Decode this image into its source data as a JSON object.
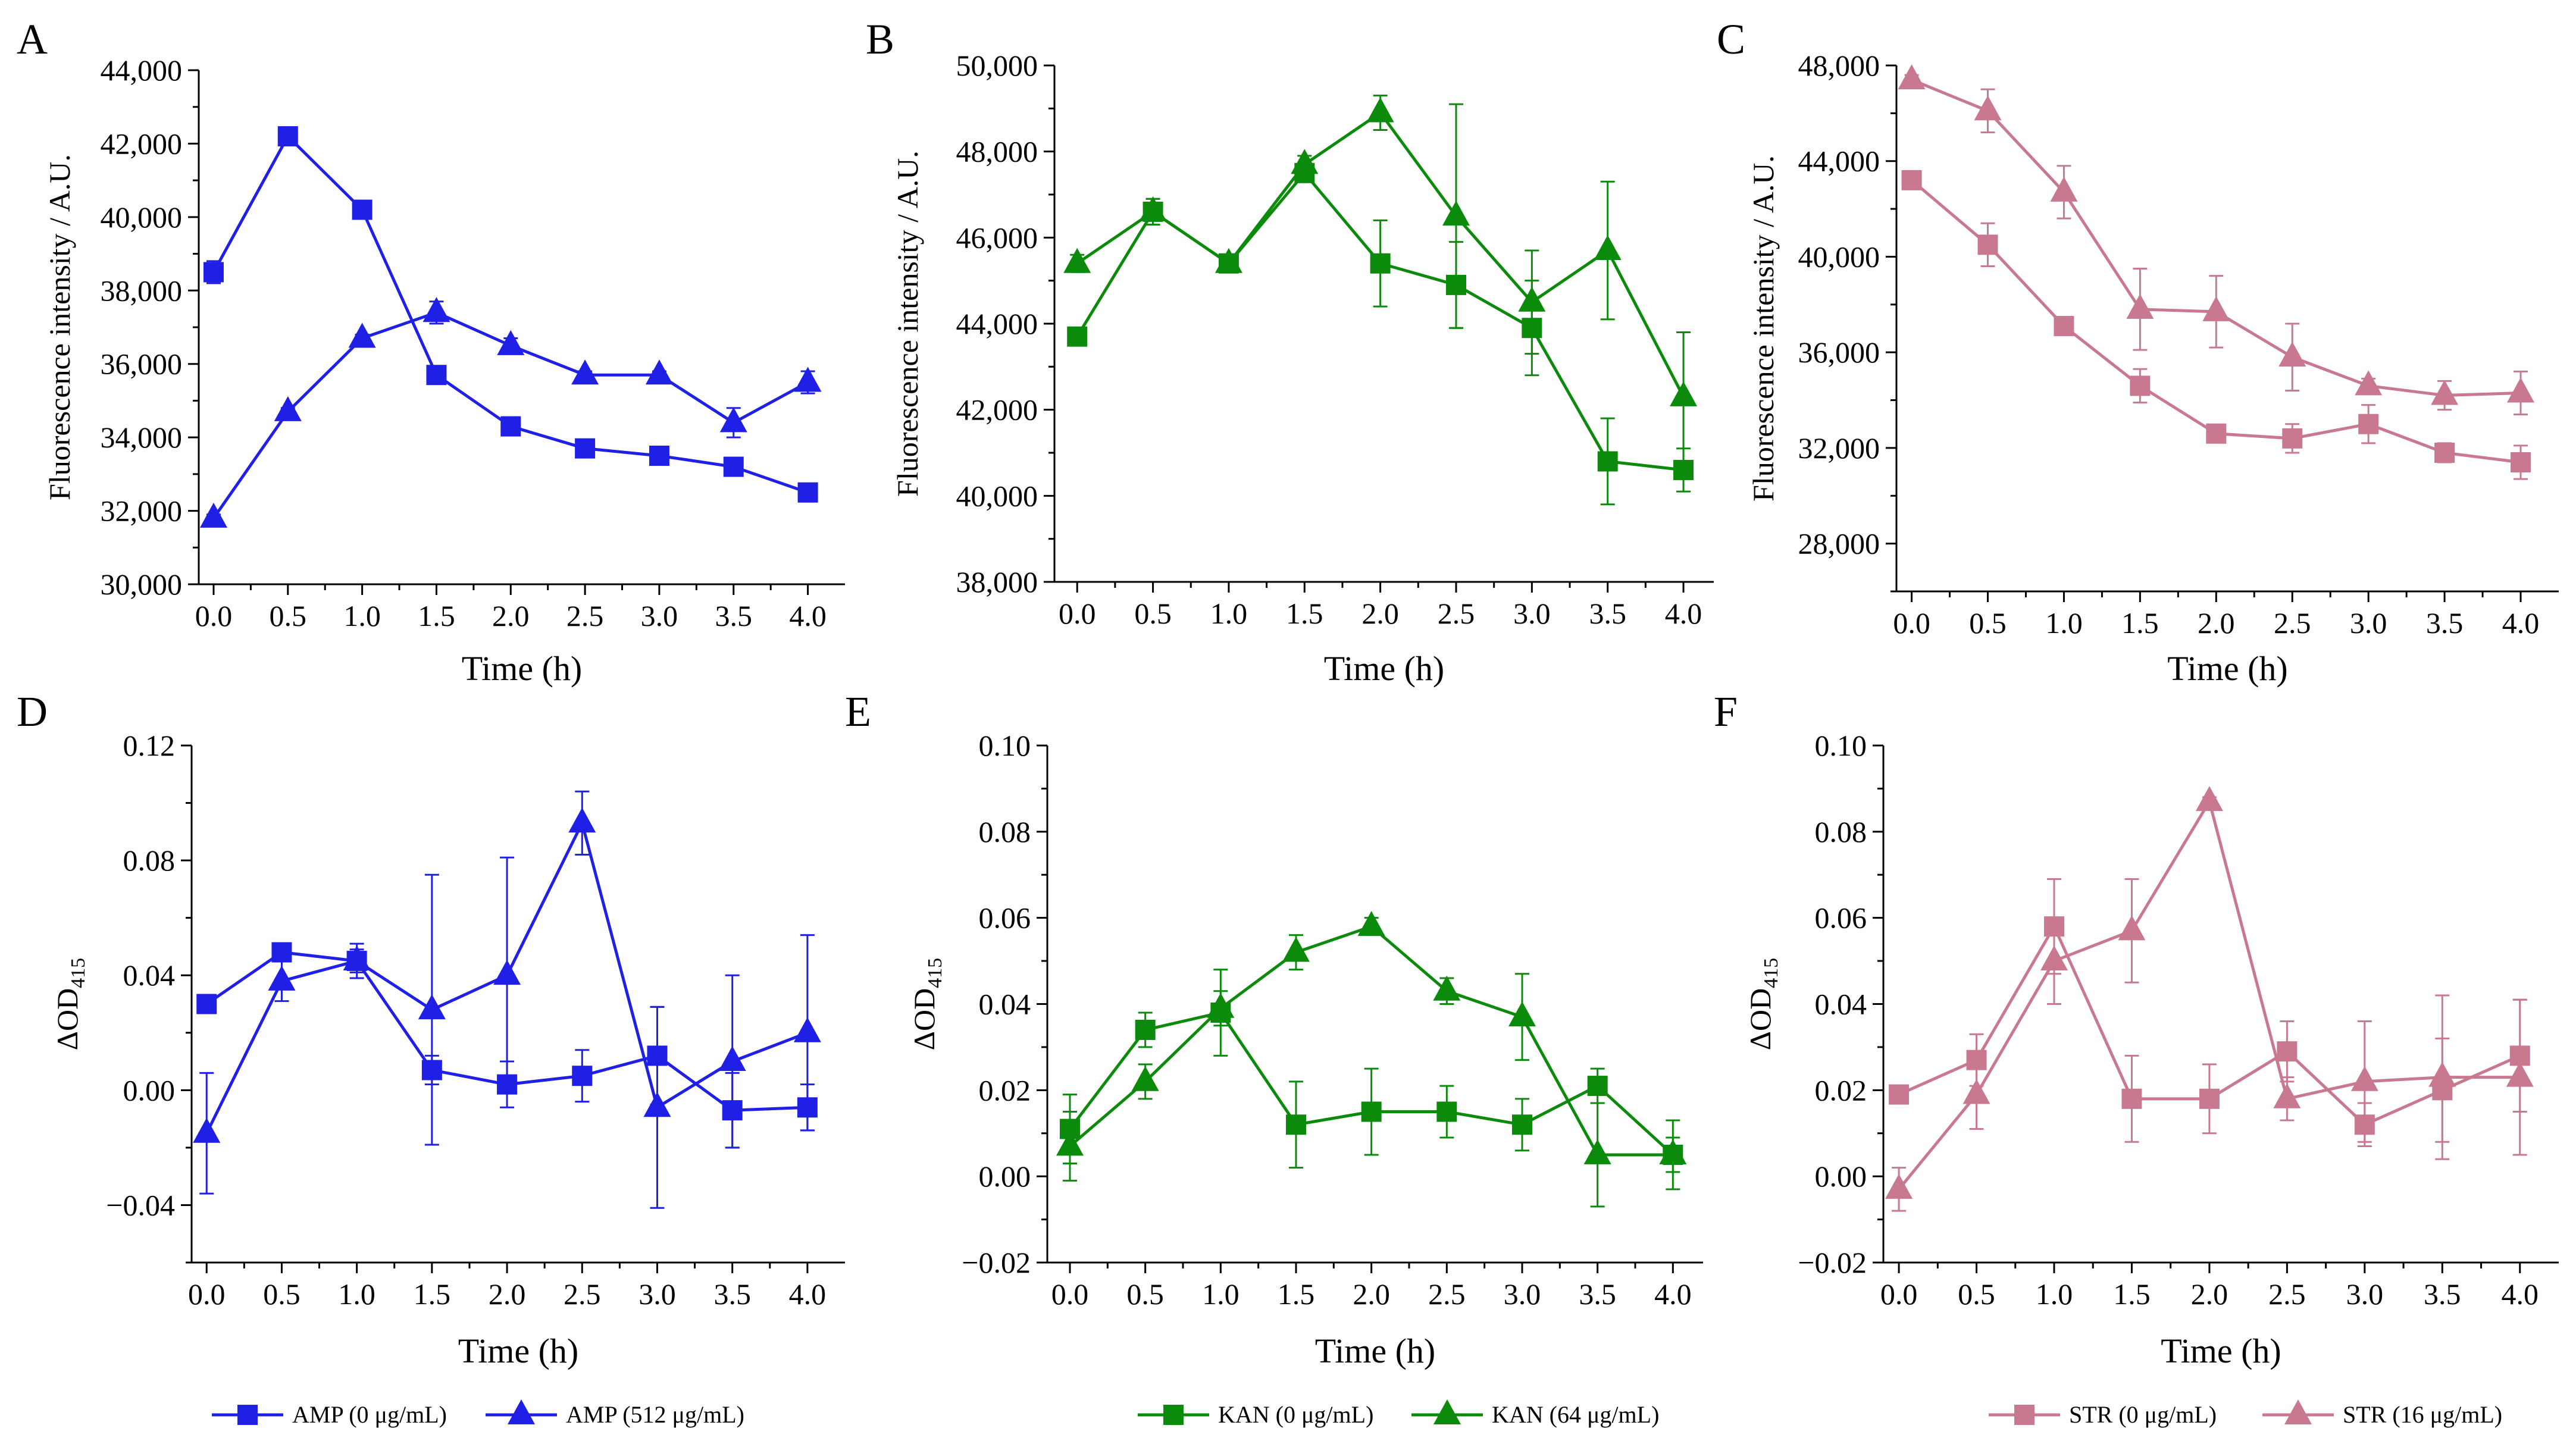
{
  "chart_data": [
    {
      "panel": "A",
      "type": "line",
      "x": [
        0.0,
        0.5,
        1.0,
        1.5,
        2.0,
        2.5,
        3.0,
        3.5,
        4.0
      ],
      "xlabel": "Time (h)",
      "ylabel": "Fluorescence intensity / A.U.",
      "xlim": [
        -0.1,
        4.25
      ],
      "ylim": [
        30000,
        44000
      ],
      "xticks": [
        0.0,
        0.5,
        1.0,
        1.5,
        2.0,
        2.5,
        3.0,
        3.5,
        4.0
      ],
      "xtick_labels": [
        "0.0",
        "0.5",
        "1.0",
        "1.5",
        "2.0",
        "2.5",
        "3.0",
        "3.5",
        "4.0"
      ],
      "yticks": [
        30000,
        32000,
        34000,
        36000,
        38000,
        40000,
        42000,
        44000
      ],
      "ytick_labels": [
        "30,000",
        "32,000",
        "34,000",
        "36,000",
        "38,000",
        "40,000",
        "42,000",
        "44,000"
      ],
      "color": "#1f1fe6",
      "series": [
        {
          "name": "AMP (0 μg/mL)",
          "marker": "square",
          "values": [
            38500,
            42200,
            40200,
            35700,
            34300,
            33700,
            33500,
            33200,
            32500
          ],
          "errors": [
            300,
            150,
            150,
            150,
            250,
            100,
            100,
            150,
            200
          ]
        },
        {
          "name": "AMP (512 μg/mL)",
          "marker": "triangle",
          "values": [
            31800,
            34700,
            36700,
            37400,
            36500,
            35700,
            35700,
            34400,
            35500
          ],
          "errors": [
            100,
            100,
            100,
            300,
            200,
            100,
            100,
            400,
            300
          ]
        }
      ]
    },
    {
      "panel": "B",
      "type": "line",
      "x": [
        0.0,
        0.5,
        1.0,
        1.5,
        2.0,
        2.5,
        3.0,
        3.5,
        4.0
      ],
      "xlabel": "Time (h)",
      "ylabel": "Fluorescence intensity / A.U.",
      "xlim": [
        -0.15,
        4.2
      ],
      "ylim": [
        38000,
        50000
      ],
      "xticks": [
        0.0,
        0.5,
        1.0,
        1.5,
        2.0,
        2.5,
        3.0,
        3.5,
        4.0
      ],
      "xtick_labels": [
        "0.0",
        "0.5",
        "1.0",
        "1.5",
        "2.0",
        "2.5",
        "3.0",
        "3.5",
        "4.0"
      ],
      "yticks": [
        38000,
        40000,
        42000,
        44000,
        46000,
        48000,
        50000
      ],
      "ytick_labels": [
        "38,000",
        "40,000",
        "42,000",
        "44,000",
        "46,000",
        "48,000",
        "50,000"
      ],
      "color": "#0b8a0b",
      "series": [
        {
          "name": "KAN (0 μg/mL)",
          "marker": "square",
          "values": [
            43700,
            46600,
            45400,
            47500,
            45400,
            44900,
            43900,
            40800,
            40600
          ],
          "errors": [
            100,
            300,
            200,
            200,
            1000,
            1000,
            1100,
            1000,
            500
          ]
        },
        {
          "name": "KAN (64 μg/mL)",
          "marker": "triangle",
          "values": [
            45400,
            46600,
            45400,
            47700,
            48900,
            46500,
            44500,
            45700,
            42300
          ],
          "errors": [
            200,
            300,
            200,
            200,
            400,
            2600,
            1200,
            1600,
            1500
          ]
        }
      ]
    },
    {
      "panel": "C",
      "type": "line",
      "x": [
        0.0,
        0.5,
        1.0,
        1.5,
        2.0,
        2.5,
        3.0,
        3.5,
        4.0
      ],
      "xlabel": "Time (h)",
      "ylabel": "Fluorescence intensity / A.U.",
      "xlim": [
        -0.1,
        4.25
      ],
      "ylim": [
        26000,
        48000
      ],
      "xticks": [
        0.0,
        0.5,
        1.0,
        1.5,
        2.0,
        2.5,
        3.0,
        3.5,
        4.0
      ],
      "xtick_labels": [
        "0.0",
        "0.5",
        "1.0",
        "1.5",
        "2.0",
        "2.5",
        "3.0",
        "3.5",
        "4.0"
      ],
      "yticks": [
        28000,
        32000,
        36000,
        40000,
        44000,
        48000
      ],
      "ytick_labels": [
        "28,000",
        "32,000",
        "36,000",
        "40,000",
        "44,000",
        "48,000"
      ],
      "color": "#c9798f",
      "series": [
        {
          "name": "STR (0 μg/mL)",
          "marker": "square",
          "values": [
            43200,
            40500,
            37100,
            34600,
            32600,
            32400,
            33000,
            31800,
            31400
          ],
          "errors": [
            200,
            900,
            200,
            700,
            200,
            600,
            800,
            400,
            700
          ]
        },
        {
          "name": "STR (16 μg/mL)",
          "marker": "triangle",
          "values": [
            47400,
            46100,
            42700,
            37800,
            37700,
            35800,
            34600,
            34200,
            34300
          ],
          "errors": [
            200,
            900,
            1100,
            1700,
            1500,
            1400,
            300,
            600,
            900
          ]
        }
      ]
    },
    {
      "panel": "D",
      "type": "line",
      "x": [
        0.0,
        0.5,
        1.0,
        1.5,
        2.0,
        2.5,
        3.0,
        3.5,
        4.0
      ],
      "xlabel": "Time (h)",
      "ylabel": "ΔOD",
      "ylabel_subscript": "415",
      "xlim": [
        -0.1,
        4.25
      ],
      "ylim": [
        -0.06,
        0.12
      ],
      "xticks": [
        0.0,
        0.5,
        1.0,
        1.5,
        2.0,
        2.5,
        3.0,
        3.5,
        4.0
      ],
      "xtick_labels": [
        "0.0",
        "0.5",
        "1.0",
        "1.5",
        "2.0",
        "2.5",
        "3.0",
        "3.5",
        "4.0"
      ],
      "yticks": [
        -0.04,
        0.0,
        0.04,
        0.08,
        0.12
      ],
      "ytick_labels": [
        "−0.04",
        "0.00",
        "0.04",
        "0.08",
        "0.12"
      ],
      "color": "#1f1fe6",
      "series": [
        {
          "name": "AMP (0 μg/mL)",
          "marker": "square",
          "values": [
            0.03,
            0.048,
            0.045,
            0.007,
            0.002,
            0.005,
            0.012,
            -0.007,
            -0.006
          ],
          "errors": [
            0.003,
            0.002,
            0.004,
            0.005,
            0.008,
            0.009,
            0.017,
            0.013,
            0.008
          ]
        },
        {
          "name": "AMP (512 μg/mL)",
          "marker": "triangle",
          "values": [
            -0.015,
            0.038,
            0.045,
            0.028,
            0.04,
            0.093,
            -0.006,
            0.01,
            0.02
          ],
          "errors": [
            0.021,
            0.007,
            0.006,
            0.047,
            0.041,
            0.011,
            0.035,
            0.03,
            0.034
          ]
        }
      ]
    },
    {
      "panel": "E",
      "type": "line",
      "x": [
        0.0,
        0.5,
        1.0,
        1.5,
        2.0,
        2.5,
        3.0,
        3.5,
        4.0
      ],
      "xlabel": "Time (h)",
      "ylabel": "ΔOD",
      "ylabel_subscript": "415",
      "xlim": [
        -0.15,
        4.2
      ],
      "ylim": [
        -0.02,
        0.1
      ],
      "xticks": [
        0.0,
        0.5,
        1.0,
        1.5,
        2.0,
        2.5,
        3.0,
        3.5,
        4.0
      ],
      "xtick_labels": [
        "0.0",
        "0.5",
        "1.0",
        "1.5",
        "2.0",
        "2.5",
        "3.0",
        "3.5",
        "4.0"
      ],
      "yticks": [
        -0.02,
        0.0,
        0.02,
        0.04,
        0.06,
        0.08,
        0.1
      ],
      "ytick_labels": [
        "−0.02",
        "0.00",
        "0.02",
        "0.04",
        "0.06",
        "0.08",
        "0.10"
      ],
      "color": "#0b8a0b",
      "series": [
        {
          "name": "KAN (0 μg/mL)",
          "marker": "square",
          "values": [
            0.011,
            0.034,
            0.038,
            0.012,
            0.015,
            0.015,
            0.012,
            0.021,
            0.005
          ],
          "errors": [
            0.008,
            0.004,
            0.01,
            0.01,
            0.01,
            0.006,
            0.006,
            0.004,
            0.008
          ]
        },
        {
          "name": "KAN (64 μg/mL)",
          "marker": "triangle",
          "values": [
            0.007,
            0.022,
            0.039,
            0.052,
            0.058,
            0.043,
            0.037,
            0.005,
            0.005
          ],
          "errors": [
            0.008,
            0.004,
            0.004,
            0.004,
            0.002,
            0.003,
            0.01,
            0.012,
            0.004
          ]
        }
      ]
    },
    {
      "panel": "F",
      "type": "line",
      "x": [
        0.0,
        0.5,
        1.0,
        1.5,
        2.0,
        2.5,
        3.0,
        3.5,
        4.0
      ],
      "xlabel": "Time (h)",
      "ylabel": "ΔOD",
      "ylabel_subscript": "415",
      "xlim": [
        -0.1,
        4.25
      ],
      "ylim": [
        -0.02,
        0.1
      ],
      "xticks": [
        0.0,
        0.5,
        1.0,
        1.5,
        2.0,
        2.5,
        3.0,
        3.5,
        4.0
      ],
      "xtick_labels": [
        "0.0",
        "0.5",
        "1.0",
        "1.5",
        "2.0",
        "2.5",
        "3.0",
        "3.5",
        "4.0"
      ],
      "yticks": [
        -0.02,
        0.0,
        0.02,
        0.04,
        0.06,
        0.08,
        0.1
      ],
      "ytick_labels": [
        "−0.02",
        "0.00",
        "0.02",
        "0.04",
        "0.06",
        "0.08",
        "0.10"
      ],
      "color": "#c9798f",
      "series": [
        {
          "name": "STR (0 μg/mL)",
          "marker": "square",
          "values": [
            0.019,
            0.027,
            0.058,
            0.018,
            0.018,
            0.029,
            0.012,
            0.02,
            0.028
          ],
          "errors": [
            0.002,
            0.006,
            0.011,
            0.01,
            0.008,
            0.007,
            0.005,
            0.012,
            0.013
          ]
        },
        {
          "name": "STR (16 μg/mL)",
          "marker": "triangle",
          "values": [
            -0.003,
            0.019,
            0.05,
            0.057,
            0.087,
            0.018,
            0.022,
            0.023,
            0.023
          ],
          "errors": [
            0.005,
            0.008,
            0.01,
            0.012,
            0.001,
            0.005,
            0.014,
            0.019,
            0.018
          ]
        }
      ]
    }
  ]
}
